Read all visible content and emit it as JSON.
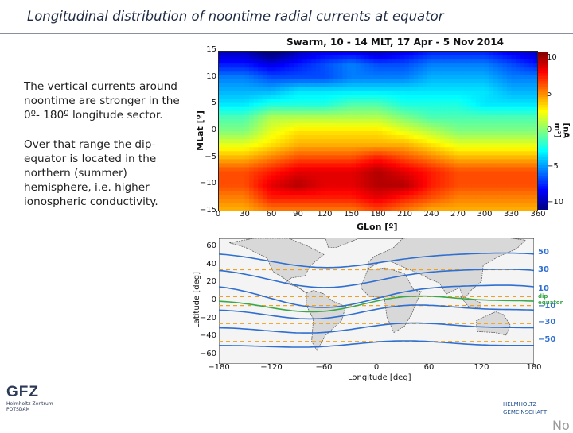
{
  "slide": {
    "title": "Longitudinal distribution of noontime radial currents at equator",
    "paragraph1": "The vertical currents around noontime are stronger in the 0º- 180º longitude sector.",
    "paragraph2": "Over that range the dip-equator is located in the northern (summer) hemisphere, i.e. higher ionospheric conductivity.",
    "corner_text": "No"
  },
  "logos": {
    "gfz": "GFZ",
    "gfz_sub1": "Helmholtz-Zentrum",
    "gfz_sub2": "POTSDAM",
    "helmholtz1": "HELMHOLTZ",
    "helmholtz2": "GEMEINSCHAFT"
  },
  "heatmap": {
    "title": "Swarm, 10 - 14 MLT, 17 Apr - 5 Nov 2014",
    "xlabel": "GLon [º]",
    "ylabel": "MLat [º]",
    "colorbar_label": "[nA m²]",
    "xticks": [
      "0",
      "30",
      "60",
      "90",
      "120",
      "150",
      "180",
      "210",
      "240",
      "270",
      "300",
      "330",
      "360"
    ],
    "yticks": [
      "15",
      "10",
      "5",
      "0",
      "−5",
      "−10",
      "−15"
    ],
    "cticks": [
      "10",
      "5",
      "0",
      "−5",
      "−10"
    ]
  },
  "map": {
    "xlabel": "Longitude [deg]",
    "ylabel": "Latitude [deg]",
    "xticks": [
      "−180",
      "−120",
      "−60",
      "0",
      "60",
      "120",
      "180"
    ],
    "yticks": [
      "60",
      "40",
      "20",
      "0",
      "−20",
      "−40",
      "−60"
    ],
    "contour_labels": [
      "50",
      "30",
      "10",
      "dip equator",
      "−10",
      "−30",
      "−50"
    ]
  },
  "colors": {
    "title": "#1e2a44",
    "contour_blue": "#2f6fd0",
    "dip_equator": "#3aa84a",
    "dashed": "#f0a020"
  },
  "chart_data": {
    "type": "heatmap",
    "title": "Swarm, 10 - 14 MLT, 17 Apr - 5 Nov 2014",
    "xlabel": "GLon [º]",
    "ylabel": "MLat [º]",
    "xlim": [
      0,
      360
    ],
    "ylim": [
      -15,
      15
    ],
    "clim": [
      -10,
      10
    ],
    "colorbar_label": "[nA m²]",
    "x": [
      0,
      30,
      60,
      90,
      120,
      150,
      180,
      210,
      240,
      270,
      300,
      330,
      360
    ],
    "y": [
      15,
      12.5,
      10,
      7.5,
      5,
      2.5,
      0,
      -2.5,
      -5,
      -7.5,
      -10,
      -12.5,
      -15
    ],
    "z": [
      [
        -9,
        -9,
        -11,
        -9,
        -8,
        -8,
        -9,
        -8,
        -7,
        -7,
        -7,
        -8,
        -9
      ],
      [
        -7,
        -7,
        -8,
        -7,
        -6,
        -5,
        -6,
        -6,
        -5,
        -5,
        -5,
        -6,
        -7
      ],
      [
        -5,
        -5,
        -6,
        -6,
        -6,
        -5,
        -5,
        -5,
        -4,
        -4,
        -4,
        -5,
        -5
      ],
      [
        -4,
        -4,
        -4,
        -3,
        -3,
        -3,
        -3,
        -3,
        -3,
        -3,
        -3,
        -4,
        -4
      ],
      [
        -3,
        -3,
        -2,
        -2,
        -2,
        -1,
        -1,
        -2,
        -2,
        -2,
        -3,
        -3,
        -3
      ],
      [
        -1,
        -1,
        1,
        1,
        1,
        1,
        1,
        0,
        -1,
        -1,
        -1,
        -1,
        -1
      ],
      [
        0,
        0,
        2,
        3,
        3,
        3,
        3,
        2,
        1,
        0,
        0,
        0,
        0
      ],
      [
        2,
        2,
        3,
        4,
        4,
        4,
        4,
        4,
        3,
        2,
        2,
        2,
        2
      ],
      [
        4,
        4,
        5,
        6,
        6,
        6,
        7,
        6,
        5,
        4,
        4,
        4,
        4
      ],
      [
        6,
        6,
        7,
        8,
        8,
        8,
        9,
        8,
        7,
        6,
        6,
        6,
        6
      ],
      [
        6,
        6,
        8,
        9,
        8,
        8,
        9,
        9,
        7,
        6,
        6,
        6,
        6
      ],
      [
        5,
        5,
        7,
        7,
        7,
        7,
        8,
        7,
        6,
        5,
        5,
        5,
        5
      ],
      [
        4,
        4,
        5,
        5,
        5,
        5,
        6,
        5,
        4,
        4,
        4,
        4,
        4
      ]
    ]
  }
}
